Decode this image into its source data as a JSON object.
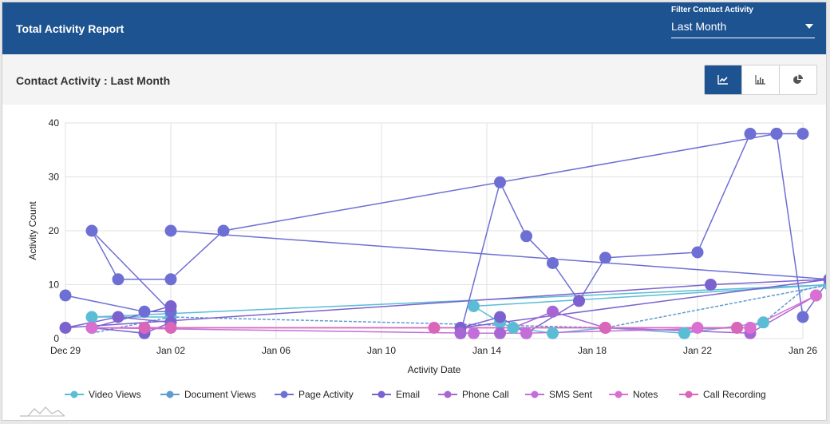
{
  "header": {
    "title": "Total Activity Report",
    "filter_label": "Filter Contact Activity",
    "filter_value": "Last Month"
  },
  "subheader": {
    "title": "Contact Activity : Last Month",
    "view_buttons": [
      {
        "icon": "line-chart-icon",
        "active": true
      },
      {
        "icon": "bar-chart-icon",
        "active": false
      },
      {
        "icon": "pie-chart-icon",
        "active": false
      }
    ]
  },
  "colors": {
    "header_bg": "#1e5391",
    "video_views": "#5bbcd6",
    "document_views": "#5e9bd0",
    "page_activity": "#6d6fd4",
    "email": "#7b62cf",
    "phone_call": "#a866d4",
    "sms_sent": "#c46fd9",
    "notes": "#d86fd1",
    "call_recording": "#d966b9"
  },
  "chart_data": {
    "type": "line",
    "xlabel": "Activity Date",
    "ylabel": "Activity Count",
    "ylim": [
      0,
      40
    ],
    "yticks": [
      "0",
      "10",
      "20",
      "30",
      "40"
    ],
    "xticks": [
      "Dec 29",
      "Jan 02",
      "Jan 06",
      "Jan 10",
      "Jan 14",
      "Jan 18",
      "Jan 22",
      "Jan 26"
    ],
    "grid": true,
    "legend_position": "bottom",
    "series": [
      {
        "name": "Video Views",
        "color": "#5bbcd6",
        "dashed": false,
        "marker": true,
        "x": [
          32,
          29,
          25,
          11.5,
          12.5,
          13,
          14.5,
          16.5,
          19.5,
          22.5
        ],
        "y": [
          4,
          4,
          10,
          6,
          3,
          2,
          1,
          2,
          1,
          3
        ]
      },
      {
        "name": "Document Views",
        "color": "#5e9bd0",
        "dashed": true,
        "marker": false,
        "x": [
          29,
          32,
          16.5,
          25,
          24,
          22.5
        ],
        "y": [
          1,
          4,
          2,
          10,
          9,
          3
        ]
      },
      {
        "name": "Page Activity",
        "color": "#6d6fd4",
        "dashed": false,
        "marker": true,
        "x": [
          28,
          31,
          32,
          29,
          30,
          32,
          34,
          23,
          24,
          23
        ],
        "y": [
          8,
          5,
          5,
          20,
          11,
          11,
          20,
          38,
          38,
          38
        ]
      },
      {
        "name": "Page Activity",
        "color": "#6d6fd4",
        "dashed": false,
        "marker": true,
        "x": [
          32,
          25,
          24,
          23,
          22,
          20,
          16.5,
          15.5,
          14.5,
          13.5,
          12.5,
          11
        ],
        "y": [
          20,
          11,
          4,
          38,
          38,
          16,
          15,
          7,
          14,
          19,
          29,
          1
        ]
      },
      {
        "name": "Email",
        "color": "#7b62cf",
        "dashed": false,
        "marker": true,
        "x": [
          32,
          29,
          31,
          32,
          30,
          28,
          20.5,
          25,
          11,
          12.5,
          13.5,
          15.5
        ],
        "y": [
          6,
          2,
          1,
          3,
          4,
          2,
          10,
          11,
          2,
          4,
          1,
          7
        ]
      },
      {
        "name": "Phone Call",
        "color": "#a866d4",
        "dashed": false,
        "marker": true,
        "x": [
          11,
          12.5,
          14.5,
          16.5,
          22,
          24.5
        ],
        "y": [
          1,
          1,
          5,
          2,
          1,
          8
        ]
      },
      {
        "name": "SMS Sent",
        "color": "#c46fd9",
        "dashed": false,
        "marker": true,
        "x": [
          32,
          29,
          11.5,
          13.5,
          21.5,
          22
        ],
        "y": [
          2,
          2,
          1,
          1,
          2,
          2
        ]
      },
      {
        "name": "Notes",
        "color": "#d86fd1",
        "dashed": false,
        "marker": true,
        "x": [
          29,
          31,
          16.5,
          20,
          22,
          24.5
        ],
        "y": [
          2,
          2,
          2,
          2,
          2,
          8
        ]
      },
      {
        "name": "Call Recording",
        "color": "#d966b9",
        "dashed": false,
        "marker": true,
        "x": [
          31,
          32,
          10,
          16.5,
          21.5
        ],
        "y": [
          2,
          2,
          2,
          2,
          2
        ]
      }
    ]
  }
}
